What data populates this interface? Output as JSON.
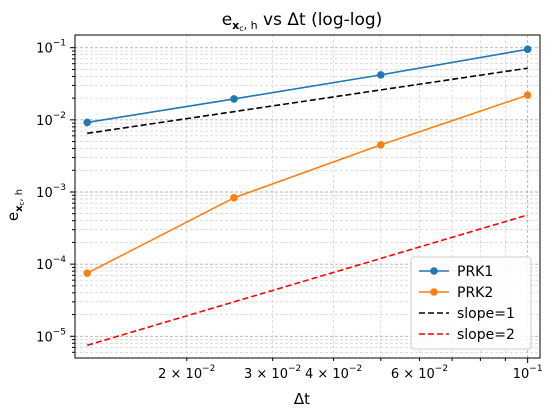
{
  "chart_data": {
    "type": "line",
    "title": "e_{x_c,h} vs Δt (log-log)",
    "title_parts": {
      "e": "e",
      "sub": "x",
      "subsub": "c",
      "sub_rest": ", h",
      "rest": " vs Δt (log-log)"
    },
    "xlabel": "Δt",
    "ylabel": "e_{x_c,h}",
    "ylabel_parts": {
      "e": "e",
      "sub": "x",
      "subsub": "c",
      "sub_rest": ", h"
    },
    "x_scale": "log",
    "y_scale": "log",
    "xlim": [
      0.0118,
      0.106
    ],
    "ylim": [
      5e-06,
      0.15
    ],
    "grid": true,
    "grid_minor": true,
    "legend_position": "lower-right",
    "x_major_ticks": [
      {
        "value": 0.1,
        "mantissa": "10",
        "exp": "−1"
      }
    ],
    "x_minor_ticks": [
      {
        "value": 0.02,
        "mantissa": "2 × 10",
        "exp": "−2"
      },
      {
        "value": 0.03,
        "mantissa": "3 × 10",
        "exp": "−2"
      },
      {
        "value": 0.04,
        "mantissa": "4 × 10",
        "exp": "−2"
      },
      {
        "value": 0.06,
        "mantissa": "6 × 10",
        "exp": "−2"
      }
    ],
    "y_major_ticks": [
      {
        "value": 1e-05,
        "mantissa": "10",
        "exp": "−5"
      },
      {
        "value": 0.0001,
        "mantissa": "10",
        "exp": "−4"
      },
      {
        "value": 0.001,
        "mantissa": "10",
        "exp": "−3"
      },
      {
        "value": 0.01,
        "mantissa": "10",
        "exp": "−2"
      },
      {
        "value": 0.1,
        "mantissa": "10",
        "exp": "−1"
      }
    ],
    "series": [
      {
        "name": "PRK1",
        "color": "#1f77b4",
        "style": "solid",
        "marker": "circle",
        "x": [
          0.0125,
          0.025,
          0.05,
          0.1
        ],
        "y": [
          0.0092,
          0.0195,
          0.042,
          0.095
        ]
      },
      {
        "name": "PRK2",
        "color": "#ff7f0e",
        "style": "solid",
        "marker": "circle",
        "x": [
          0.0125,
          0.025,
          0.05,
          0.1
        ],
        "y": [
          7.5e-05,
          0.00083,
          0.0045,
          0.022
        ]
      },
      {
        "name": "slope=1",
        "color": "#000000",
        "style": "dashed",
        "marker": "none",
        "x": [
          0.0125,
          0.1
        ],
        "y": [
          0.0065,
          0.052
        ]
      },
      {
        "name": "slope=2",
        "color": "#ff0000",
        "style": "dashed",
        "marker": "none",
        "x": [
          0.0125,
          0.1
        ],
        "y": [
          7.5e-06,
          0.00048
        ]
      }
    ]
  }
}
